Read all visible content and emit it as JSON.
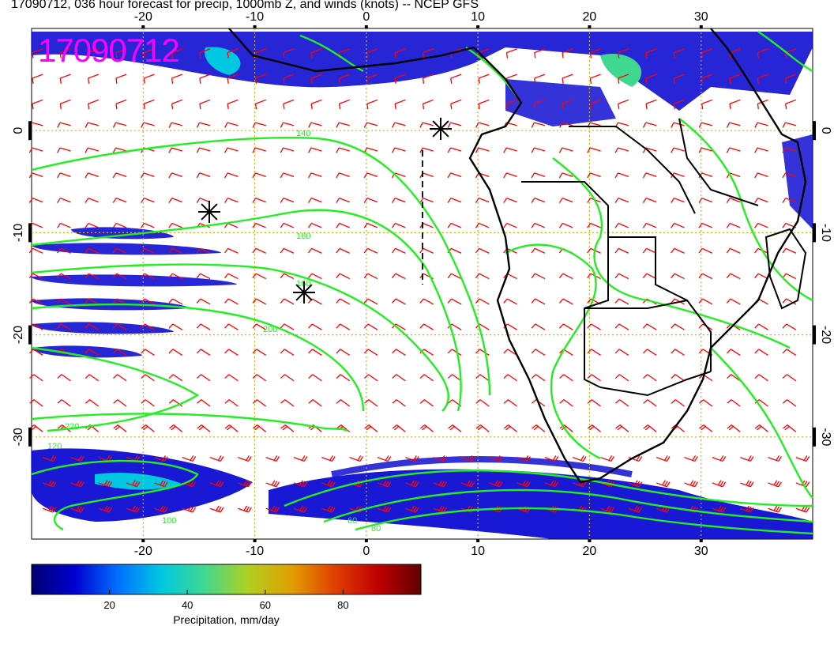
{
  "title": "17090712, 036 hour forecast for precip, 1000mb Z, and winds (knots) -- NCEP GFS",
  "timestamp_stamp": "17090712",
  "map": {
    "lon_ticks": [
      "-20",
      "-10",
      "0",
      "10",
      "20",
      "30"
    ],
    "lon_values": [
      -20,
      -10,
      0,
      10,
      20,
      30
    ],
    "lat_ticks": [
      "0",
      "-10",
      "-20",
      "-30"
    ],
    "lat_values": [
      0,
      -10,
      -20,
      -30
    ],
    "lon_range": [
      -30,
      40
    ],
    "lat_range": [
      -40,
      10
    ],
    "grid_color": "#d4b000",
    "coast_color": "#000000",
    "contour_color": "#22ee22",
    "barb_color": "#ff0000",
    "contour_labels": [
      "140",
      "180",
      "160",
      "200",
      "220",
      "120",
      "100",
      "80",
      "60"
    ],
    "storm_markers": [
      "asterisk",
      "asterisk",
      "asterisk"
    ]
  },
  "colorbar": {
    "label": "Precipitation, mm/day",
    "tick_labels": [
      "20",
      "40",
      "60",
      "80"
    ],
    "tick_values": [
      20,
      40,
      60,
      80
    ],
    "range": [
      0,
      100
    ],
    "colors": [
      "#000070",
      "#0000d0",
      "#0070ff",
      "#00c8e0",
      "#40d890",
      "#b0d020",
      "#e0a000",
      "#e04000",
      "#c00000",
      "#600000"
    ]
  }
}
